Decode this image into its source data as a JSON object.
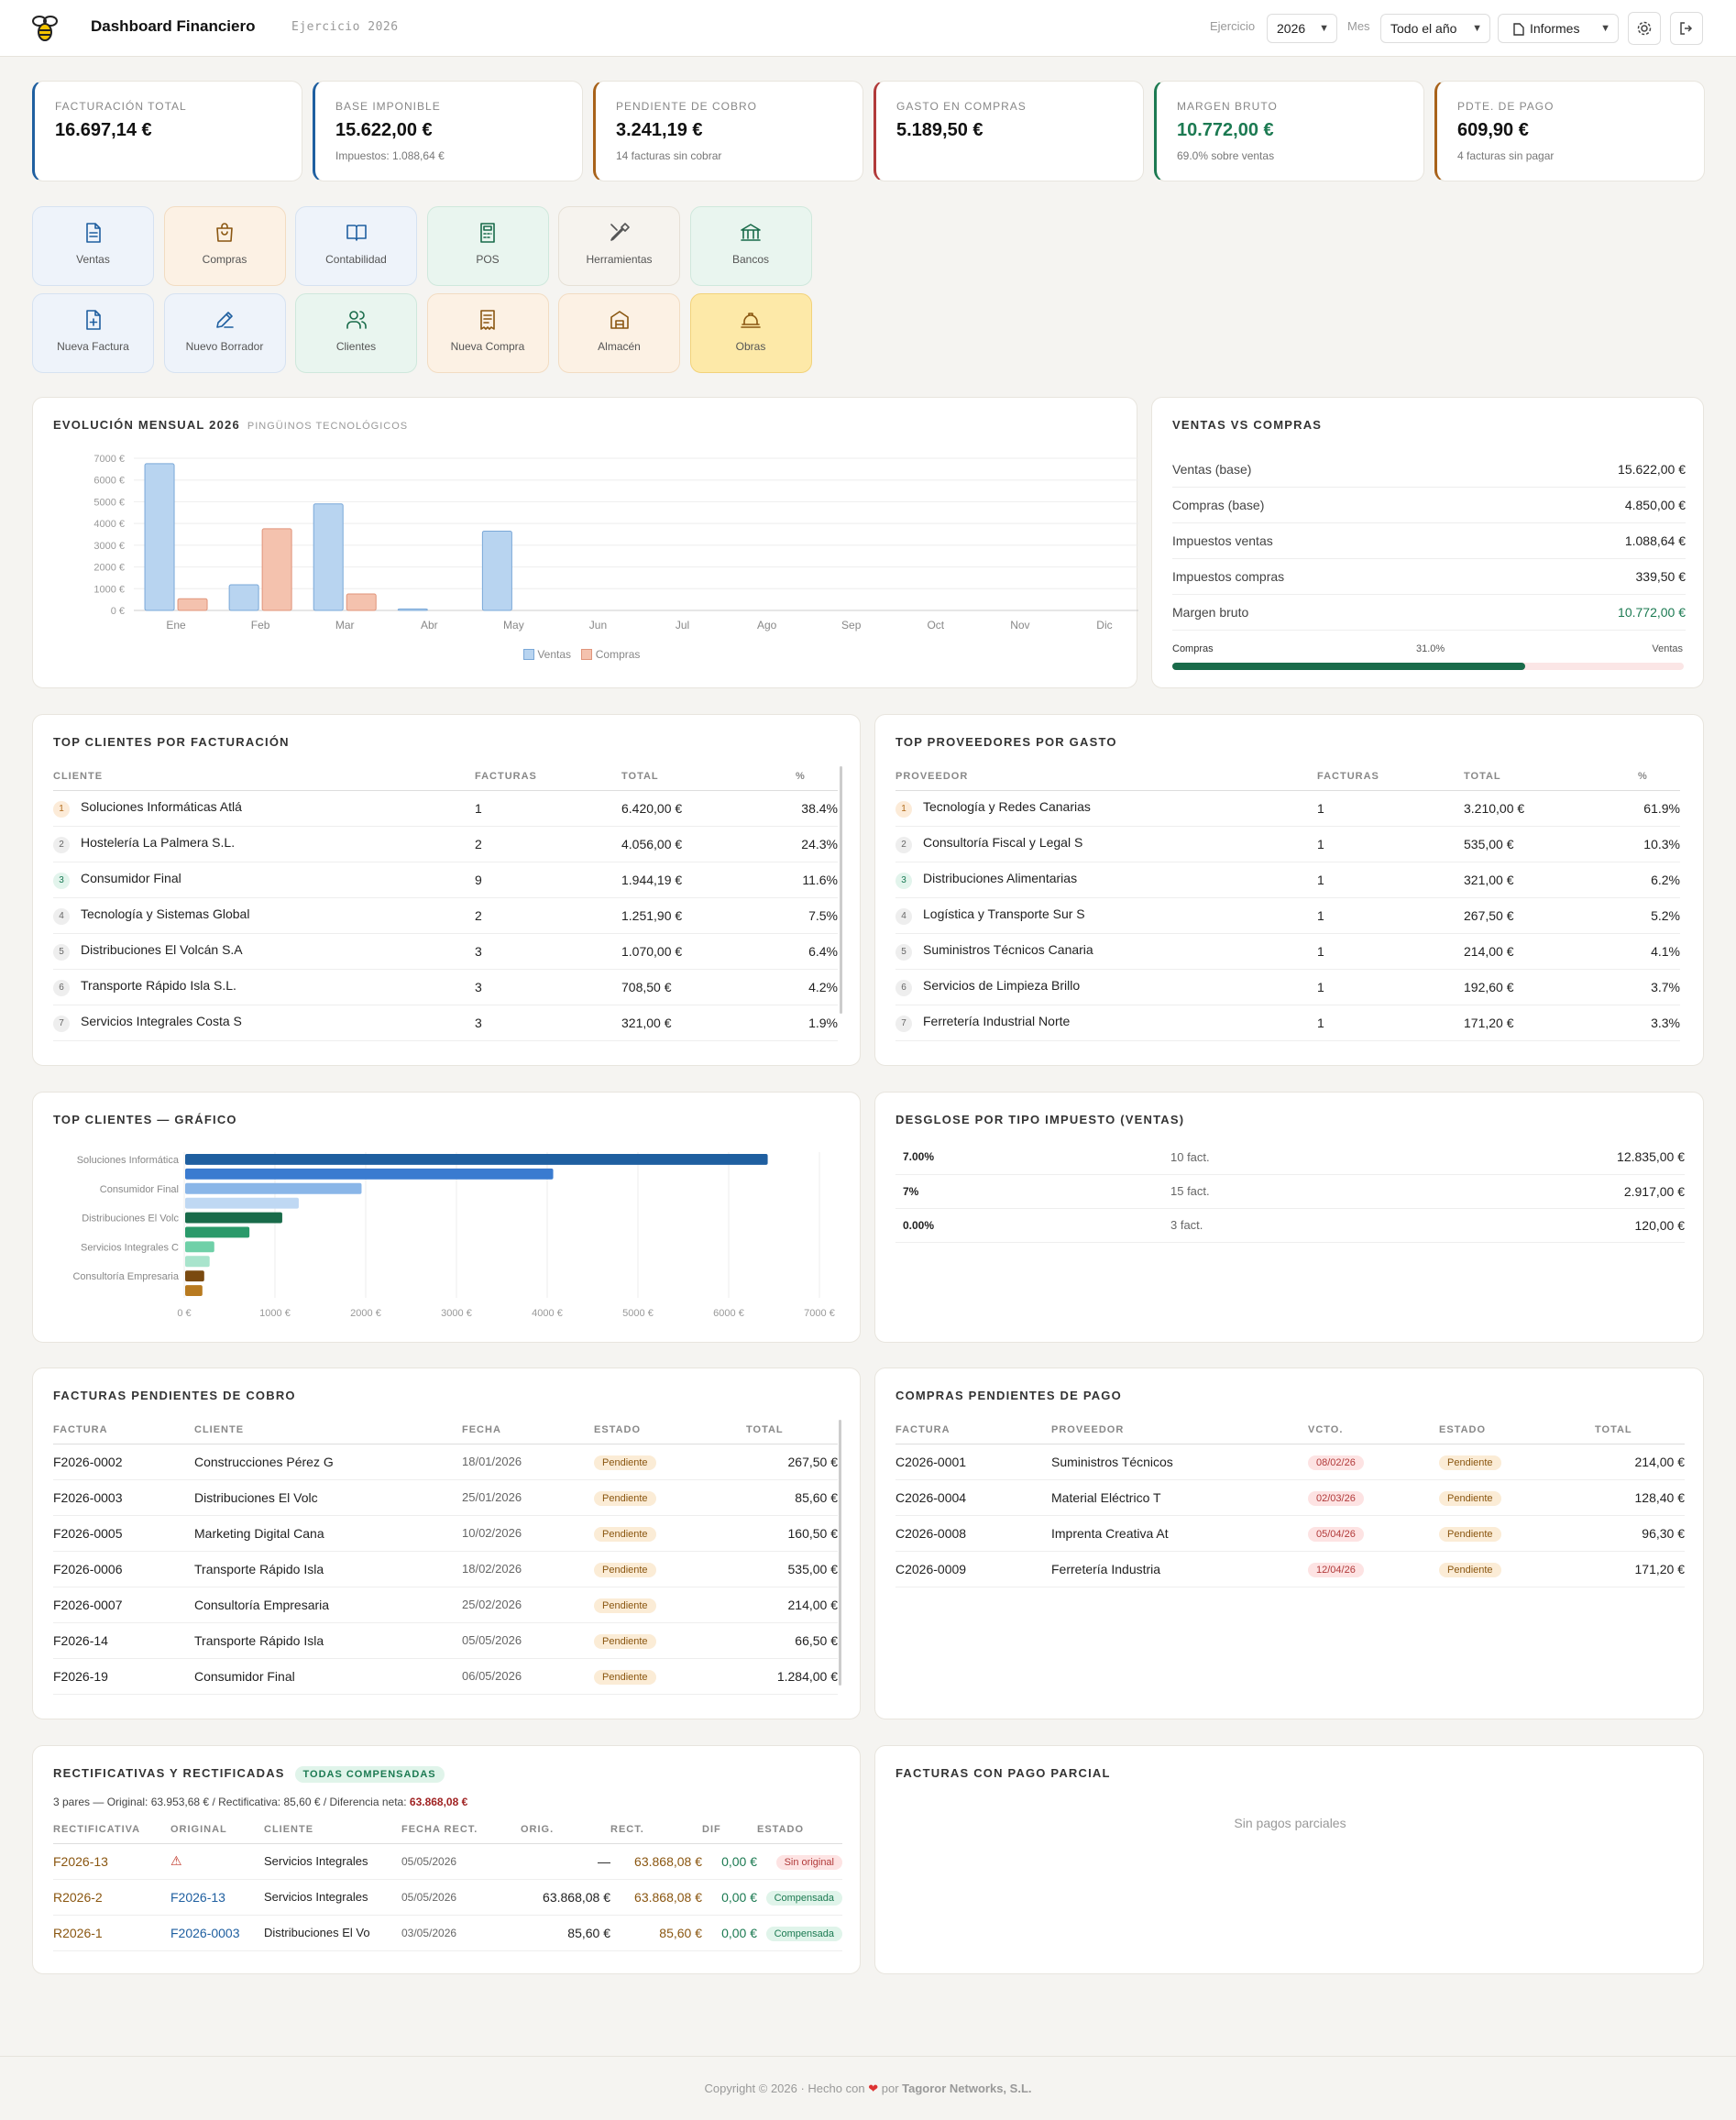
{
  "header": {
    "title": "Dashboard Financiero",
    "subtitle": "Ejercicio 2026",
    "ejercicio_label": "Ejercicio",
    "ejercicio_value": "2026",
    "mes_label": "Mes",
    "mes_value": "Todo el año",
    "informes_label": "Informes"
  },
  "kpis": [
    {
      "label": "Facturación total",
      "value": "16.697,14 €",
      "sub": "",
      "color": "#1f5fa0"
    },
    {
      "label": "Base imponible",
      "value": "15.622,00 €",
      "sub": "Impuestos: 1.088,64 €",
      "color": "#1f5fa0"
    },
    {
      "label": "Pendiente de cobro",
      "value": "3.241,19 €",
      "sub": "14 facturas sin cobrar",
      "color": "#a8621a"
    },
    {
      "label": "Gasto en compras",
      "value": "5.189,50 €",
      "sub": "",
      "color": "#b13a3a"
    },
    {
      "label": "Margen bruto",
      "value": "10.772,00 €",
      "sub": "69.0% sobre ventas",
      "color": "#1c7a52"
    },
    {
      "label": "Pdte. de pago",
      "value": "609,90 €",
      "sub": "4 facturas sin pagar",
      "color": "#a8621a"
    }
  ],
  "tiles": [
    {
      "label": "Ventas",
      "icon": "document-icon"
    },
    {
      "label": "Compras",
      "icon": "shopping-bag-icon"
    },
    {
      "label": "Contabilidad",
      "icon": "book-icon"
    },
    {
      "label": "POS",
      "icon": "calculator-icon"
    },
    {
      "label": "Herramientas",
      "icon": "tools-icon"
    },
    {
      "label": "Bancos",
      "icon": "bank-icon"
    },
    {
      "label": "Nueva Factura",
      "icon": "file-plus-icon"
    },
    {
      "label": "Nuevo Borrador",
      "icon": "pen-icon"
    },
    {
      "label": "Clientes",
      "icon": "users-icon"
    },
    {
      "label": "Nueva Compra",
      "icon": "receipt-icon"
    },
    {
      "label": "Almacén",
      "icon": "warehouse-icon"
    },
    {
      "label": "Obras",
      "icon": "hardhat-icon"
    }
  ],
  "evolucion": {
    "title": "Evolución mensual 2026",
    "subtitle": "Pingüinos Tecnológicos",
    "legend_ventas": "Ventas",
    "legend_compras": "Compras"
  },
  "chart_data": [
    {
      "type": "bar",
      "categories": [
        "Ene",
        "Feb",
        "Mar",
        "Abr",
        "May",
        "Jun",
        "Jul",
        "Ago",
        "Sep",
        "Oct",
        "Nov",
        "Dic"
      ],
      "series": [
        {
          "name": "Ventas",
          "values": [
            6750,
            1180,
            4900,
            70,
            3650,
            0,
            0,
            0,
            0,
            0,
            0,
            0
          ],
          "color": "#b8d4f0"
        },
        {
          "name": "Compras",
          "values": [
            540,
            3760,
            760,
            0,
            0,
            0,
            0,
            0,
            0,
            0,
            0,
            0
          ],
          "color": "#f4c2ae"
        }
      ],
      "yticks": [
        "0 €",
        "1000 €",
        "2000 €",
        "3000 €",
        "4000 €",
        "5000 €",
        "6000 €",
        "7000 €"
      ],
      "ylim": [
        0,
        7000
      ],
      "grid": true,
      "legend": "bottom"
    },
    {
      "type": "bar",
      "orientation": "horizontal",
      "categories": [
        "Soluciones Informática",
        "",
        "Consumidor Final",
        "",
        "Distribuciones El Volc",
        "",
        "Servicios Integrales C",
        "",
        "Consultoría Empresaria",
        ""
      ],
      "values": [
        6420,
        4056,
        1944.19,
        1251.9,
        1070,
        708.5,
        321,
        270,
        210,
        190
      ],
      "colors": [
        "#1f5fa0",
        "#3a7bd0",
        "#8ab6e8",
        "#bfd8f3",
        "#196b4a",
        "#2a9a6a",
        "#6fd0a8",
        "#a8e4cc",
        "#7a4a10",
        "#b87a20"
      ],
      "xticks": [
        "0 €",
        "1000 €",
        "2000 €",
        "3000 €",
        "4000 €",
        "5000 €",
        "6000 €",
        "7000 €"
      ],
      "xlim": [
        0,
        7000
      ],
      "grid": true
    }
  ],
  "ventas_vs_compras": {
    "title": "Ventas vs Compras",
    "rows": [
      {
        "k": "Ventas (base)",
        "v": "15.622,00 €"
      },
      {
        "k": "Compras (base)",
        "v": "4.850,00 €"
      },
      {
        "k": "Impuestos ventas",
        "v": "1.088,64 €"
      },
      {
        "k": "Impuestos compras",
        "v": "339,50 €"
      },
      {
        "k": "Margen bruto",
        "v": "10.772,00 €"
      }
    ],
    "bar_left": "Compras",
    "bar_pct": "31.0%",
    "bar_right": "Ventas",
    "bar_fill_fraction": 0.69
  },
  "top_clientes": {
    "title": "Top clientes por facturación",
    "headers": [
      "Cliente",
      "Facturas",
      "Total",
      "%"
    ],
    "rows": [
      {
        "n": "1",
        "name": "Soluciones Informáticas Atlá",
        "f": "1",
        "t": "6.420,00 €",
        "p": "38.4%"
      },
      {
        "n": "2",
        "name": "Hostelería La Palmera S.L.",
        "f": "2",
        "t": "4.056,00 €",
        "p": "24.3%"
      },
      {
        "n": "3",
        "name": "Consumidor Final",
        "f": "9",
        "t": "1.944,19 €",
        "p": "11.6%"
      },
      {
        "n": "4",
        "name": "Tecnología y Sistemas Global",
        "f": "2",
        "t": "1.251,90 €",
        "p": "7.5%"
      },
      {
        "n": "5",
        "name": "Distribuciones El Volcán S.A",
        "f": "3",
        "t": "1.070,00 €",
        "p": "6.4%"
      },
      {
        "n": "6",
        "name": "Transporte Rápido Isla S.L.",
        "f": "3",
        "t": "708,50 €",
        "p": "4.2%"
      },
      {
        "n": "7",
        "name": "Servicios Integrales Costa S",
        "f": "3",
        "t": "321,00 €",
        "p": "1.9%"
      }
    ]
  },
  "top_proveedores": {
    "title": "Top proveedores por gasto",
    "headers": [
      "Proveedor",
      "Facturas",
      "Total",
      "%"
    ],
    "rows": [
      {
        "n": "1",
        "name": "Tecnología y Redes Canarias",
        "f": "1",
        "t": "3.210,00 €",
        "p": "61.9%"
      },
      {
        "n": "2",
        "name": "Consultoría Fiscal y Legal S",
        "f": "1",
        "t": "535,00 €",
        "p": "10.3%"
      },
      {
        "n": "3",
        "name": "Distribuciones Alimentarias",
        "f": "1",
        "t": "321,00 €",
        "p": "6.2%"
      },
      {
        "n": "4",
        "name": "Logística y Transporte Sur S",
        "f": "1",
        "t": "267,50 €",
        "p": "5.2%"
      },
      {
        "n": "5",
        "name": "Suministros Técnicos Canaria",
        "f": "1",
        "t": "214,00 €",
        "p": "4.1%"
      },
      {
        "n": "6",
        "name": "Servicios de Limpieza Brillo",
        "f": "1",
        "t": "192,60 €",
        "p": "3.7%"
      },
      {
        "n": "7",
        "name": "Ferretería Industrial Norte",
        "f": "1",
        "t": "171,20 €",
        "p": "3.3%"
      }
    ]
  },
  "top_clientes_grafico": {
    "title": "Top clientes — gráfico"
  },
  "desglose": {
    "title": "Desglose por tipo impuesto (ventas)",
    "rows": [
      {
        "tipo": "7.00%",
        "fact": "10 fact.",
        "total": "12.835,00 €"
      },
      {
        "tipo": "7%",
        "fact": "15 fact.",
        "total": "2.917,00 €"
      },
      {
        "tipo": "0.00%",
        "fact": "3 fact.",
        "total": "120,00 €"
      }
    ]
  },
  "pendientes_cobro": {
    "title": "Facturas pendientes de cobro",
    "headers": [
      "Factura",
      "Cliente",
      "Fecha",
      "Estado",
      "Total"
    ],
    "rows": [
      {
        "fac": "F2026-0002",
        "cli": "Construcciones Pérez G",
        "fecha": "18/01/2026",
        "estado": "Pendiente",
        "total": "267,50 €"
      },
      {
        "fac": "F2026-0003",
        "cli": "Distribuciones El Volc",
        "fecha": "25/01/2026",
        "estado": "Pendiente",
        "total": "85,60 €"
      },
      {
        "fac": "F2026-0005",
        "cli": "Marketing Digital Cana",
        "fecha": "10/02/2026",
        "estado": "Pendiente",
        "total": "160,50 €"
      },
      {
        "fac": "F2026-0006",
        "cli": "Transporte Rápido Isla",
        "fecha": "18/02/2026",
        "estado": "Pendiente",
        "total": "535,00 €"
      },
      {
        "fac": "F2026-0007",
        "cli": "Consultoría Empresaria",
        "fecha": "25/02/2026",
        "estado": "Pendiente",
        "total": "214,00 €"
      },
      {
        "fac": "F2026-14",
        "cli": "Transporte Rápido Isla",
        "fecha": "05/05/2026",
        "estado": "Pendiente",
        "total": "66,50 €"
      },
      {
        "fac": "F2026-19",
        "cli": "Consumidor Final",
        "fecha": "06/05/2026",
        "estado": "Pendiente",
        "total": "1.284,00 €"
      }
    ]
  },
  "pendientes_pago": {
    "title": "Compras pendientes de pago",
    "headers": [
      "Factura",
      "Proveedor",
      "Vcto.",
      "Estado",
      "Total"
    ],
    "rows": [
      {
        "fac": "C2026-0001",
        "prov": "Suministros Técnicos",
        "vcto": "08/02/26",
        "estado": "Pendiente",
        "total": "214,00 €"
      },
      {
        "fac": "C2026-0004",
        "prov": "Material Eléctrico T",
        "vcto": "02/03/26",
        "estado": "Pendiente",
        "total": "128,40 €"
      },
      {
        "fac": "C2026-0008",
        "prov": "Imprenta Creativa At",
        "vcto": "05/04/26",
        "estado": "Pendiente",
        "total": "96,30 €"
      },
      {
        "fac": "C2026-0009",
        "prov": "Ferretería Industria",
        "vcto": "12/04/26",
        "estado": "Pendiente",
        "total": "171,20 €"
      }
    ]
  },
  "rectificativas": {
    "title": "Rectificativas y rectificadas",
    "badge": "Todas compensadas",
    "summary": "3 pares — Original: 63.953,68 € / Rectificativa: 85,60 € / Diferencia neta:",
    "summary_value": "63.868,08 €",
    "headers": [
      "Rectificativa",
      "Original",
      "Cliente",
      "Fecha rect.",
      "Orig.",
      "Rect.",
      "Dif",
      "Estado"
    ],
    "rows": [
      {
        "rect": "F2026-13",
        "orig": "⚠",
        "cli": "Servicios Integrales",
        "fecha": "05/05/2026",
        "o": "—",
        "r": "63.868,08 €",
        "d": "0,00 €",
        "estado": "Sin original"
      },
      {
        "rect": "R2026-2",
        "orig": "F2026-13",
        "cli": "Servicios Integrales",
        "fecha": "05/05/2026",
        "o": "63.868,08 €",
        "r": "63.868,08 €",
        "d": "0,00 €",
        "estado": "Compensada"
      },
      {
        "rect": "R2026-1",
        "orig": "F2026-0003",
        "cli": "Distribuciones El Vo",
        "fecha": "03/05/2026",
        "o": "85,60 €",
        "r": "85,60 €",
        "d": "0,00 €",
        "estado": "Compensada"
      }
    ]
  },
  "pago_parcial": {
    "title": "Facturas con pago parcial",
    "empty": "Sin pagos parciales"
  },
  "footer": {
    "copyright": "Copyright © 2026",
    "hecho": "Hecho con",
    "por": "por",
    "company": "Tagoror Networks, S.L."
  }
}
